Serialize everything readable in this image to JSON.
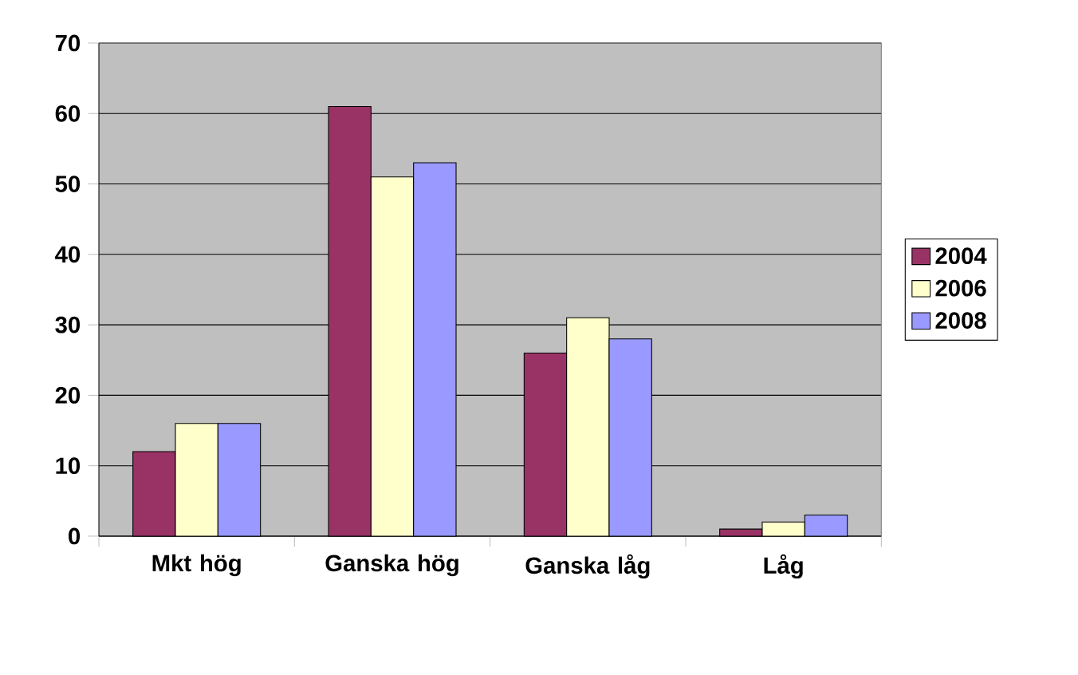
{
  "chart_data": {
    "type": "bar",
    "categories": [
      "Mkt hög",
      "Ganska hög",
      "Ganska låg",
      "Låg"
    ],
    "series": [
      {
        "name": "2004",
        "color": "#993366",
        "values": [
          12,
          61,
          26,
          1
        ]
      },
      {
        "name": "2006",
        "color": "#ffffcc",
        "values": [
          16,
          51,
          31,
          2
        ]
      },
      {
        "name": "2008",
        "color": "#9999ff",
        "values": [
          16,
          53,
          28,
          3
        ]
      }
    ],
    "ylim": [
      0,
      70
    ],
    "yticks": [
      0,
      10,
      20,
      30,
      40,
      50,
      60,
      70
    ],
    "grid": "y",
    "legend": "right"
  }
}
